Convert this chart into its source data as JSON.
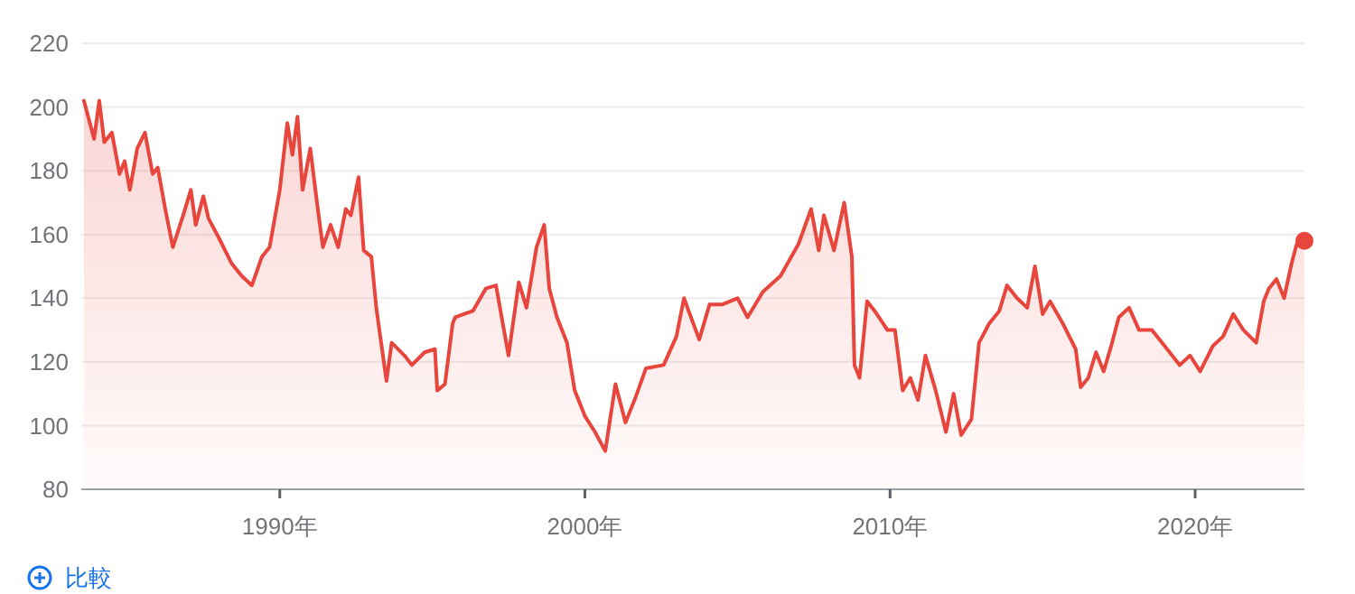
{
  "chart_data": {
    "type": "area",
    "x": [
      "1983-08",
      "1983-12",
      "1984-02",
      "1984-04",
      "1984-07",
      "1984-10",
      "1984-12",
      "1985-02",
      "1985-05",
      "1985-08",
      "1985-11",
      "1986-01",
      "1986-04",
      "1986-07",
      "1986-11",
      "1987-02",
      "1987-04",
      "1987-07",
      "1987-09",
      "1988-01",
      "1988-06",
      "1988-10",
      "1989-02",
      "1989-06",
      "1989-09",
      "1990-01",
      "1990-04",
      "1990-06",
      "1990-08",
      "1990-10",
      "1991-01",
      "1991-04",
      "1991-06",
      "1991-09",
      "1991-12",
      "1992-03",
      "1992-05",
      "1992-08",
      "1992-10",
      "1993-01",
      "1993-03",
      "1993-07",
      "1993-09",
      "1994-02",
      "1994-05",
      "1994-10",
      "1995-02",
      "1995-03",
      "1995-06",
      "1995-09",
      "1995-10",
      "1996-05",
      "1996-10",
      "1997-02",
      "1997-07",
      "1997-11",
      "1998-02",
      "1998-06",
      "1998-09",
      "1998-11",
      "1999-02",
      "1999-06",
      "1999-09",
      "2000-01",
      "2000-05",
      "2000-09",
      "2001-01",
      "2001-05",
      "2001-09",
      "2002-01",
      "2002-08",
      "2003-01",
      "2003-04",
      "2003-10",
      "2004-02",
      "2004-07",
      "2005-01",
      "2005-05",
      "2005-11",
      "2006-06",
      "2007-01",
      "2007-06",
      "2007-09",
      "2007-11",
      "2008-03",
      "2008-07",
      "2008-10",
      "2008-11",
      "2009-01",
      "2009-04",
      "2009-07",
      "2009-12",
      "2010-03",
      "2010-06",
      "2010-09",
      "2010-12",
      "2011-03",
      "2011-07",
      "2011-11",
      "2012-02",
      "2012-05",
      "2012-09",
      "2012-12",
      "2013-04",
      "2013-08",
      "2013-11",
      "2014-03",
      "2014-07",
      "2014-10",
      "2015-01",
      "2015-04",
      "2015-09",
      "2016-02",
      "2016-04",
      "2016-07",
      "2016-10",
      "2017-01",
      "2017-04",
      "2017-07",
      "2017-11",
      "2018-03",
      "2018-08",
      "2019-01",
      "2019-07",
      "2019-11",
      "2020-03",
      "2020-08",
      "2020-12",
      "2021-04",
      "2021-08",
      "2022-01",
      "2022-04",
      "2022-06",
      "2022-09",
      "2022-12",
      "2023-03",
      "2023-05",
      "2023-08"
    ],
    "series": [
      {
        "color": "#e8453c",
        "values": [
          202,
          190,
          202,
          189,
          192,
          179,
          183,
          174,
          187,
          192,
          179,
          181,
          168,
          156,
          166,
          174,
          163,
          172,
          165,
          159,
          151,
          147,
          144,
          153,
          156,
          174,
          195,
          185,
          197,
          174,
          187,
          168,
          156,
          163,
          156,
          168,
          166,
          178,
          155,
          153,
          137,
          114,
          126,
          122,
          119,
          123,
          124,
          111,
          113,
          132,
          134,
          136,
          143,
          144,
          122,
          145,
          137,
          156,
          163,
          143,
          134,
          126,
          111,
          103,
          98,
          92,
          113,
          101,
          109,
          118,
          119,
          128,
          140,
          127,
          138,
          138,
          140,
          134,
          142,
          147,
          157,
          168,
          155,
          166,
          155,
          170,
          153,
          119,
          115,
          139,
          136,
          130,
          130,
          111,
          115,
          108,
          122,
          111,
          98,
          110,
          97,
          102,
          126,
          132,
          136,
          144,
          140,
          137,
          150,
          135,
          139,
          132,
          124,
          112,
          115,
          123,
          117,
          125,
          134,
          137,
          130,
          130,
          125,
          119,
          122,
          117,
          125,
          128,
          135,
          130,
          126,
          139,
          143,
          146,
          140,
          151,
          157,
          158
        ]
      }
    ],
    "xlim": [
      "1983-07",
      "2023-08"
    ],
    "xticks": [
      {
        "value": "1990-01",
        "label": "1990年"
      },
      {
        "value": "2000-01",
        "label": "2000年"
      },
      {
        "value": "2010-01",
        "label": "2010年"
      },
      {
        "value": "2020-01",
        "label": "2020年"
      }
    ],
    "ylim": [
      80,
      220
    ],
    "yticks": [
      80,
      100,
      120,
      140,
      160,
      180,
      200,
      220
    ],
    "grid": "y",
    "annotations": [
      "比較"
    ]
  }
}
